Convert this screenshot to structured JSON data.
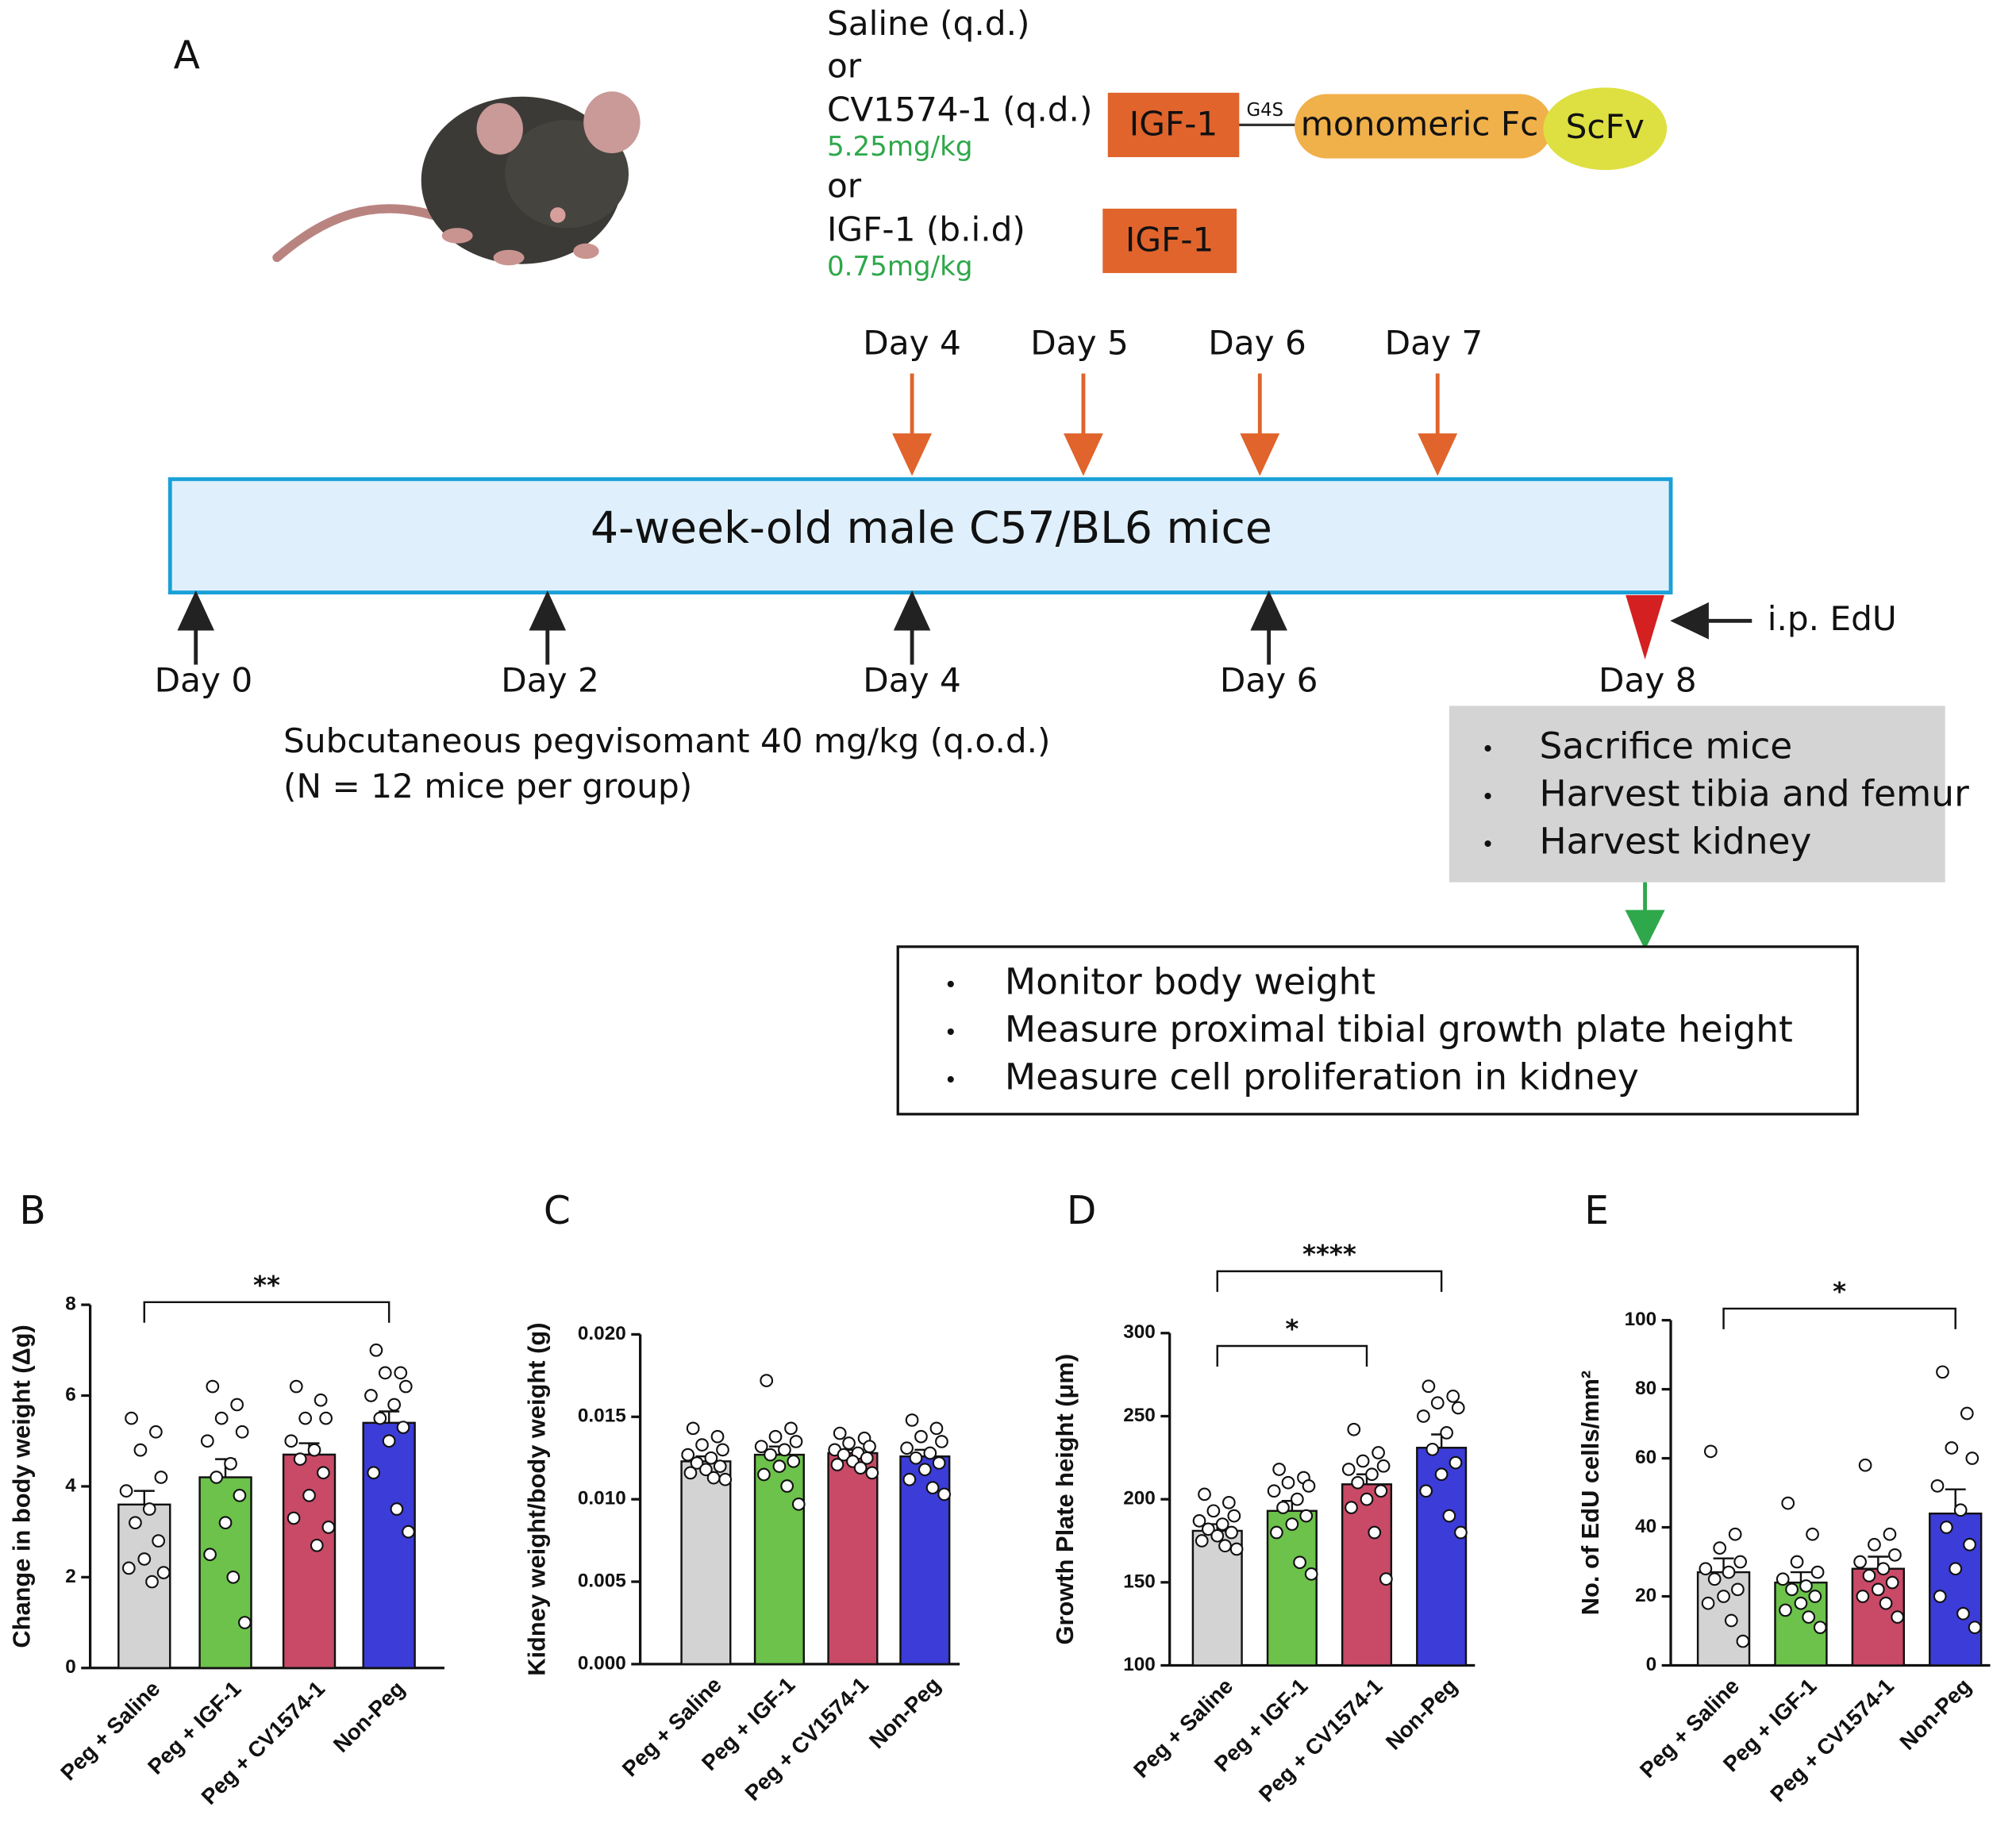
{
  "diagram": {
    "panel_label": "A",
    "treatments": [
      "Saline (q.d.)",
      "or",
      "CV1574-1 (q.d.)",
      "5.25mg/kg",
      "or",
      "IGF-1 (b.i.d)",
      "0.75mg/kg"
    ],
    "construct": {
      "igf": "IGF-1",
      "linker": "G4S",
      "fc": "monomeric Fc",
      "scfv": "ScFv"
    },
    "igf_box": "IGF-1",
    "dosing_days": [
      "Day 4",
      "Day 5",
      "Day 6",
      "Day 7"
    ],
    "timeline_label": "4-week-old male C57/BL6 mice",
    "peg_days": [
      "Day 0",
      "Day 2",
      "Day 4",
      "Day 6",
      "Day 8"
    ],
    "edu": "i.p. EdU",
    "peg_note": [
      "Subcutaneous pegvisomant 40 mg/kg (q.o.d.)",
      "(N = 12 mice per group)"
    ],
    "harvest": [
      "Sacrifice mice",
      "Harvest tibia and femur",
      "Harvest kidney"
    ],
    "analysis": [
      "Monitor body weight",
      "Measure proximal tibial growth plate height",
      "Measure cell proliferation in kidney"
    ]
  },
  "chart_data": [
    {
      "type": "bar",
      "panel_label": "B",
      "y_label": "Change in body weight (Δg)",
      "categories": [
        "Peg + Saline",
        "Peg + IGF-1",
        "Peg + CV1574-1",
        "Non-Peg"
      ],
      "colors": [
        "#d3d3d3",
        "#6cc24a",
        "#c84a66",
        "#3c3cd8"
      ],
      "values": [
        3.6,
        4.2,
        4.7,
        5.4
      ],
      "errors": [
        0.3,
        0.4,
        0.25,
        0.25
      ],
      "points": [
        [
          5.5,
          5.2,
          4.8,
          4.2,
          3.9,
          3.5,
          3.2,
          2.8,
          2.4,
          2.2,
          1.9,
          2.1
        ],
        [
          6.2,
          5.8,
          5.5,
          5.2,
          5.0,
          4.5,
          4.2,
          3.8,
          3.2,
          2.5,
          2.0,
          1.0
        ],
        [
          6.2,
          5.9,
          5.5,
          5.5,
          5.0,
          4.8,
          4.6,
          4.3,
          3.8,
          3.3,
          2.7,
          3.1
        ],
        [
          7.0,
          6.5,
          6.5,
          6.2,
          6.0,
          5.8,
          5.5,
          5.3,
          5.0,
          4.3,
          3.5,
          3.0
        ]
      ],
      "ylim": [
        0,
        8
      ],
      "yticks": [
        0,
        2,
        4,
        6,
        8
      ],
      "comparisons": [
        {
          "from": 0,
          "to": 3,
          "label": "**"
        }
      ]
    },
    {
      "type": "bar",
      "panel_label": "C",
      "y_label": "Kidney weight/body weight (g)",
      "categories": [
        "Peg + Saline",
        "Peg + IGF-1",
        "Peg + CV1574-1",
        "Non-Peg"
      ],
      "colors": [
        "#d3d3d3",
        "#6cc24a",
        "#c84a66",
        "#3c3cd8"
      ],
      "values": [
        0.0123,
        0.0127,
        0.0128,
        0.0126
      ],
      "errors": [
        0.0003,
        0.0005,
        0.0002,
        0.0004
      ],
      "points": [
        [
          0.0143,
          0.0138,
          0.0133,
          0.013,
          0.0127,
          0.0125,
          0.0122,
          0.012,
          0.0118,
          0.0116,
          0.0113,
          0.0112
        ],
        [
          0.0172,
          0.0143,
          0.0138,
          0.0135,
          0.0132,
          0.013,
          0.0127,
          0.0123,
          0.012,
          0.0115,
          0.0108,
          0.0097
        ],
        [
          0.014,
          0.0137,
          0.0134,
          0.0132,
          0.013,
          0.0128,
          0.0127,
          0.0125,
          0.0123,
          0.0121,
          0.0119,
          0.0116
        ],
        [
          0.0148,
          0.0143,
          0.0138,
          0.0135,
          0.0131,
          0.0128,
          0.0125,
          0.0122,
          0.0118,
          0.0112,
          0.0107,
          0.0103
        ]
      ],
      "ylim": [
        0,
        0.02
      ],
      "yticks": [
        {
          "value": 0,
          "label": "0.000"
        },
        {
          "value": 0.005,
          "label": "0.005"
        },
        {
          "value": 0.01,
          "label": "0.010"
        },
        {
          "value": 0.015,
          "label": "0.015"
        },
        {
          "value": 0.02,
          "label": "0.020"
        }
      ],
      "comparisons": []
    },
    {
      "type": "bar",
      "panel_label": "D",
      "y_label": "Growth Plate height (μm)",
      "categories": [
        "Peg + Saline",
        "Peg + IGF-1",
        "Peg + CV1574-1",
        "Non-Peg"
      ],
      "colors": [
        "#d3d3d3",
        "#6cc24a",
        "#c84a66",
        "#3c3cd8"
      ],
      "values": [
        181,
        193,
        209,
        231
      ],
      "errors": [
        4,
        6,
        6,
        8
      ],
      "points": [
        [
          203,
          198,
          193,
          190,
          187,
          185,
          182,
          180,
          178,
          175,
          172,
          170
        ],
        [
          218,
          213,
          210,
          208,
          205,
          200,
          195,
          190,
          185,
          180,
          162,
          155
        ],
        [
          242,
          228,
          223,
          220,
          218,
          215,
          210,
          205,
          200,
          195,
          180,
          152
        ],
        [
          268,
          262,
          258,
          255,
          250,
          240,
          230,
          222,
          215,
          205,
          190,
          180
        ]
      ],
      "ylim": [
        100,
        300
      ],
      "yticks": [
        100,
        150,
        200,
        250,
        300
      ],
      "comparisons": [
        {
          "from": 0,
          "to": 2,
          "label": "*"
        },
        {
          "from": 0,
          "to": 3,
          "label": "****"
        }
      ]
    },
    {
      "type": "bar",
      "panel_label": "E",
      "y_label": "No. of EdU cells/mm²",
      "categories": [
        "Peg + Saline",
        "Peg + IGF-1",
        "Peg + CV1574-1",
        "Non-Peg"
      ],
      "colors": [
        "#d3d3d3",
        "#6cc24a",
        "#c84a66",
        "#3c3cd8"
      ],
      "values": [
        27,
        24,
        28,
        44
      ],
      "errors": [
        4,
        3,
        3.5,
        7
      ],
      "points": [
        [
          62,
          38,
          34,
          30,
          28,
          27,
          25,
          22,
          20,
          18,
          13,
          7
        ],
        [
          47,
          38,
          30,
          27,
          25,
          23,
          22,
          20,
          18,
          16,
          14,
          11
        ],
        [
          58,
          38,
          35,
          32,
          30,
          28,
          26,
          24,
          22,
          20,
          18,
          14
        ],
        [
          85,
          73,
          63,
          60,
          52,
          45,
          40,
          35,
          28,
          20,
          15,
          11
        ]
      ],
      "ylim": [
        0,
        100
      ],
      "yticks": [
        0,
        20,
        40,
        60,
        80,
        100
      ],
      "comparisons": [
        {
          "from": 0,
          "to": 3,
          "label": "*"
        }
      ]
    }
  ]
}
